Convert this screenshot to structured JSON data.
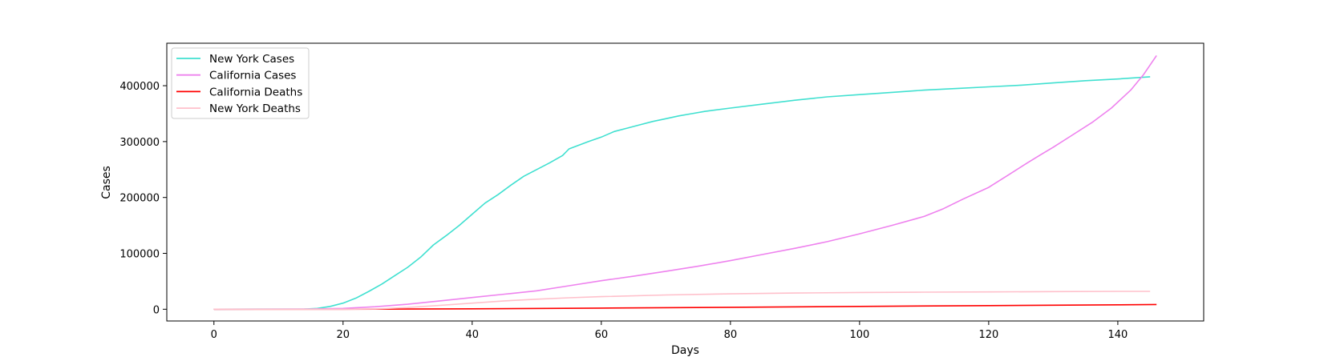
{
  "chart_data": {
    "type": "line",
    "title": "",
    "xlabel": "Days",
    "ylabel": "Cases",
    "xlim": [
      -7.3,
      153.3
    ],
    "ylim": [
      -21000,
      476000
    ],
    "xticks": [
      0,
      20,
      40,
      60,
      80,
      100,
      120,
      140
    ],
    "yticks": [
      0,
      100000,
      200000,
      300000,
      400000
    ],
    "grid": false,
    "legend_position": "top-left",
    "series": [
      {
        "name": "New York Cases",
        "color": "#40e0d0",
        "points": [
          [
            0,
            0
          ],
          [
            14,
            400
          ],
          [
            16,
            1500
          ],
          [
            18,
            5000
          ],
          [
            20,
            11000
          ],
          [
            22,
            20000
          ],
          [
            24,
            32000
          ],
          [
            26,
            45000
          ],
          [
            28,
            60000
          ],
          [
            30,
            75000
          ],
          [
            32,
            93000
          ],
          [
            34,
            115000
          ],
          [
            36,
            132000
          ],
          [
            38,
            150000
          ],
          [
            40,
            170000
          ],
          [
            42,
            190000
          ],
          [
            44,
            205000
          ],
          [
            46,
            222000
          ],
          [
            48,
            238000
          ],
          [
            50,
            250000
          ],
          [
            52,
            262000
          ],
          [
            54,
            275000
          ],
          [
            55,
            287000
          ],
          [
            58,
            300000
          ],
          [
            60,
            308000
          ],
          [
            62,
            318000
          ],
          [
            64,
            324000
          ],
          [
            66,
            330000
          ],
          [
            68,
            336000
          ],
          [
            70,
            341000
          ],
          [
            72,
            346000
          ],
          [
            74,
            350000
          ],
          [
            76,
            354000
          ],
          [
            80,
            360000
          ],
          [
            85,
            367000
          ],
          [
            90,
            374000
          ],
          [
            95,
            380000
          ],
          [
            100,
            384000
          ],
          [
            105,
            388000
          ],
          [
            110,
            392000
          ],
          [
            115,
            395000
          ],
          [
            120,
            398000
          ],
          [
            125,
            401000
          ],
          [
            130,
            405000
          ],
          [
            135,
            409000
          ],
          [
            140,
            412000
          ],
          [
            145,
            416000
          ]
        ]
      },
      {
        "name": "California Cases",
        "color": "#ee82ee",
        "points": [
          [
            0,
            0
          ],
          [
            15,
            500
          ],
          [
            20,
            1500
          ],
          [
            25,
            4500
          ],
          [
            30,
            9000
          ],
          [
            35,
            15000
          ],
          [
            40,
            21000
          ],
          [
            45,
            27000
          ],
          [
            50,
            33000
          ],
          [
            55,
            42000
          ],
          [
            60,
            51000
          ],
          [
            65,
            59000
          ],
          [
            70,
            68000
          ],
          [
            75,
            77000
          ],
          [
            80,
            87000
          ],
          [
            85,
            98000
          ],
          [
            90,
            109000
          ],
          [
            95,
            121000
          ],
          [
            100,
            135000
          ],
          [
            105,
            150000
          ],
          [
            110,
            166000
          ],
          [
            113,
            180000
          ],
          [
            116,
            197000
          ],
          [
            120,
            218000
          ],
          [
            123,
            240000
          ],
          [
            126,
            262000
          ],
          [
            128,
            276000
          ],
          [
            130,
            290000
          ],
          [
            133,
            312000
          ],
          [
            136,
            334000
          ],
          [
            139,
            360000
          ],
          [
            142,
            392000
          ],
          [
            144,
            420000
          ],
          [
            146,
            454000
          ]
        ]
      },
      {
        "name": "California Deaths",
        "color": "#ff0000",
        "points": [
          [
            0,
            0
          ],
          [
            20,
            0
          ],
          [
            40,
            800
          ],
          [
            60,
            2000
          ],
          [
            80,
            3500
          ],
          [
            100,
            5000
          ],
          [
            120,
            6500
          ],
          [
            140,
            8000
          ],
          [
            146,
            8500
          ]
        ]
      },
      {
        "name": "New York Deaths",
        "color": "#ffc0cb",
        "points": [
          [
            0,
            0
          ],
          [
            20,
            0
          ],
          [
            25,
            500
          ],
          [
            30,
            3000
          ],
          [
            35,
            7000
          ],
          [
            40,
            11000
          ],
          [
            45,
            15000
          ],
          [
            50,
            18000
          ],
          [
            55,
            20500
          ],
          [
            60,
            22500
          ],
          [
            70,
            25500
          ],
          [
            80,
            27500
          ],
          [
            90,
            29000
          ],
          [
            100,
            30000
          ],
          [
            110,
            30500
          ],
          [
            120,
            31000
          ],
          [
            130,
            31500
          ],
          [
            140,
            32000
          ],
          [
            145,
            32000
          ]
        ]
      }
    ]
  }
}
